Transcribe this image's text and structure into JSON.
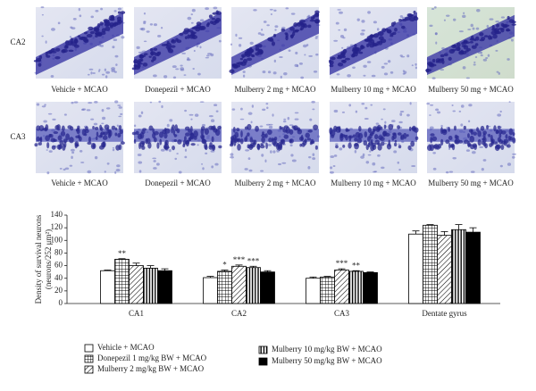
{
  "panels": {
    "rows": [
      {
        "label": "CA2",
        "captions": [
          "Vehicle + MCAO",
          "Donepezil + MCAO",
          "Mulberry 2 mg + MCAO",
          "Mulberry 10 mg + MCAO",
          "Mulberry 50 mg + MCAO"
        ]
      },
      {
        "label": "CA3",
        "captions": [
          "Vehicle + MCAO",
          "Donepezil + MCAO",
          "Mulberry 2 mg + MCAO",
          "Mulberry 10 mg + MCAO",
          "Mulberry 50 mg + MCAO"
        ]
      }
    ]
  },
  "chart_data": {
    "type": "bar",
    "ylabel": "Density of survival neurons",
    "ylabel_unit": "(neurons/252 μm²)",
    "categories": [
      "CA1",
      "CA2",
      "CA3",
      "Dentate gyrus"
    ],
    "ylim": [
      0,
      140
    ],
    "yticks": [
      0,
      20,
      40,
      60,
      80,
      100,
      120,
      140
    ],
    "series": [
      {
        "name": "Vehicle + MCAO",
        "color": "#000000",
        "pattern": "none",
        "values": [
          52,
          41,
          40,
          110
        ],
        "errors": [
          1,
          2,
          2,
          5
        ],
        "annotations": [
          null,
          null,
          null,
          null
        ]
      },
      {
        "name": "Donepezil 1 mg/kg BW + MCAO",
        "color": "#000000",
        "pattern": "grid",
        "values": [
          70,
          51,
          42,
          124
        ],
        "errors": [
          1,
          2,
          1,
          1
        ],
        "annotations": [
          "**",
          "*",
          null,
          null
        ]
      },
      {
        "name": "Mulberry 2 mg/kg BW + MCAO",
        "color": "#000000",
        "pattern": "diagonal",
        "values": [
          60,
          59,
          53,
          108
        ],
        "errors": [
          4,
          2,
          2,
          6
        ],
        "annotations": [
          null,
          "***",
          "***",
          null
        ]
      },
      {
        "name": "Mulberry 10 mg/kg BW + MCAO",
        "color": "#000000",
        "pattern": "vertical",
        "values": [
          56,
          57,
          51,
          117
        ],
        "errors": [
          4,
          2,
          1,
          8
        ],
        "annotations": [
          null,
          "***",
          "**",
          null
        ]
      },
      {
        "name": "Mulberry 50 mg/kg BW + MCAO",
        "color": "#000000",
        "pattern": "solid",
        "values": [
          52,
          50,
          49,
          113
        ],
        "errors": [
          3,
          2,
          1,
          7
        ],
        "annotations": [
          null,
          null,
          null,
          null
        ]
      }
    ]
  }
}
